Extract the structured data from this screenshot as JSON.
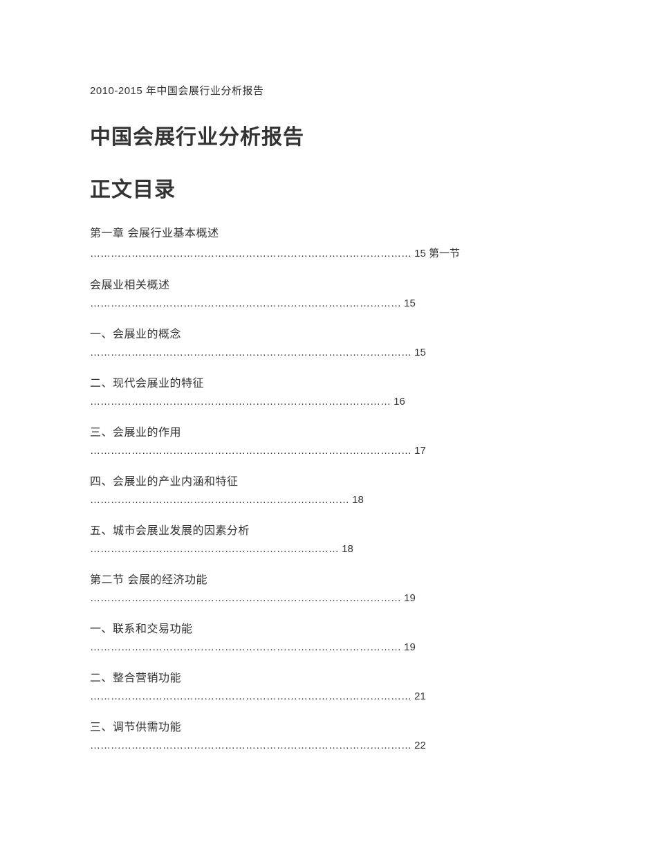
{
  "document": {
    "header_text": "2010-2015 年中国会展行业分析报告",
    "main_title": "中国会展行业分析报告",
    "toc_title": "正文目录",
    "background_color": "#ffffff",
    "text_color": "#333333",
    "header_fontsize": 15,
    "title_fontsize": 30,
    "toc_heading_fontsize": 16,
    "toc_dots_fontsize": 15
  },
  "toc": [
    {
      "heading": "第一章 会展行业基本概述",
      "dots_line": "………………………………………………………………………………… 15  第一节"
    },
    {
      "heading": "会展业相关概述",
      "dots_line": "……………………………………………………………………………… 15"
    },
    {
      "heading": "一、会展业的概念",
      "dots_line": "………………………………………………………………………………… 15"
    },
    {
      "heading": "二、现代会展业的特征",
      "dots_line": "……………………………………………………………………………  16"
    },
    {
      "heading": "三、会展业的作用",
      "dots_line": "…………………………………………………………………………………  17"
    },
    {
      "heading": "四、会展业的产业内涵和特征",
      "dots_line": "…………………………………………………………………  18"
    },
    {
      "heading": "五、城市会展业发展的因素分析",
      "dots_line": "………………………………………………………………  18"
    },
    {
      "heading": "第二节 会展的经济功能",
      "dots_line": "………………………………………………………………………………  19"
    },
    {
      "heading": "一、联系和交易功能",
      "dots_line": "………………………………………………………………………………  19"
    },
    {
      "heading": "二、整合营销功能",
      "dots_line": "…………………………………………………………………………………  21"
    },
    {
      "heading": "三、调节供需功能",
      "dots_line": "…………………………………………………………………………………  22"
    }
  ]
}
